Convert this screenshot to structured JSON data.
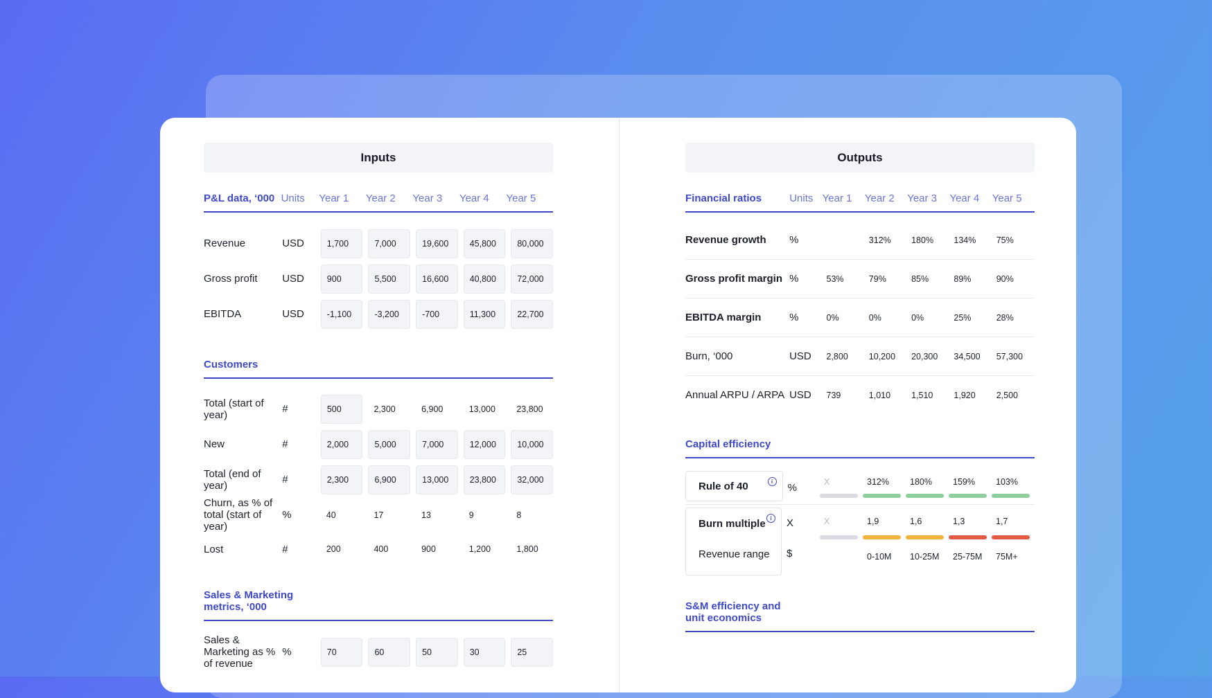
{
  "inputs": {
    "title": "Inputs",
    "pl": {
      "section": "P&L data, ‘000",
      "units_header": "Units",
      "years": [
        "Year 1",
        "Year 2",
        "Year 3",
        "Year 4",
        "Year 5"
      ],
      "rows": [
        {
          "label": "Revenue",
          "unit": "USD",
          "values": [
            "1,700",
            "7,000",
            "19,600",
            "45,800",
            "80,000"
          ]
        },
        {
          "label": "Gross profit",
          "unit": "USD",
          "values": [
            "900",
            "5,500",
            "16,600",
            "40,800",
            "72,000"
          ]
        },
        {
          "label": "EBITDA",
          "unit": "USD",
          "values": [
            "-1,100",
            "-3,200",
            "-700",
            "11,300",
            "22,700"
          ]
        }
      ]
    },
    "customers": {
      "section": "Customers",
      "rows": [
        {
          "label": "Total (start of year)",
          "unit": "#",
          "values": [
            "500",
            "2,300",
            "6,900",
            "13,000",
            "23,800"
          ]
        },
        {
          "label": "New",
          "unit": "#",
          "values": [
            "2,000",
            "5,000",
            "7,000",
            "12,000",
            "10,000"
          ]
        },
        {
          "label": "Total (end of year)",
          "unit": "#",
          "values": [
            "2,300",
            "6,900",
            "13,000",
            "23,800",
            "32,000"
          ]
        },
        {
          "label": "Churn, as % of total (start of year)",
          "unit": "%",
          "values": [
            "40",
            "17",
            "13",
            "9",
            "8"
          ]
        },
        {
          "label": "Lost",
          "unit": "#",
          "values": [
            "200",
            "400",
            "900",
            "1,200",
            "1,800"
          ]
        }
      ]
    },
    "sales": {
      "section": "Sales & Marketing metrics, ‘000",
      "rows": [
        {
          "label": "Sales & Marketing as % of revenue",
          "unit": "%",
          "values": [
            "70",
            "60",
            "50",
            "30",
            "25"
          ]
        }
      ]
    }
  },
  "outputs": {
    "title": "Outputs",
    "ratios": {
      "section": "Financial ratios",
      "units_header": "Units",
      "years": [
        "Year 1",
        "Year 2",
        "Year 3",
        "Year 4",
        "Year 5"
      ],
      "rows": [
        {
          "label": "Revenue growth",
          "unit": "%",
          "values": [
            "",
            "312%",
            "180%",
            "134%",
            "75%"
          ]
        },
        {
          "label": "Gross profit margin",
          "unit": "%",
          "values": [
            "53%",
            "79%",
            "85%",
            "89%",
            "90%"
          ]
        },
        {
          "label": "EBITDA margin",
          "unit": "%",
          "values": [
            "0%",
            "0%",
            "0%",
            "25%",
            "28%"
          ]
        },
        {
          "label": "Burn, ‘000",
          "unit": "USD",
          "values": [
            "2,800",
            "10,200",
            "20,300",
            "34,500",
            "57,300"
          ]
        },
        {
          "label": "Annual ARPU / ARPA",
          "unit": "USD",
          "values": [
            "739",
            "1,010",
            "1,510",
            "1,920",
            "2,500"
          ]
        }
      ]
    },
    "capital": {
      "section": "Capital efficiency",
      "rule40": {
        "label": "Rule of 40",
        "unit": "%",
        "values": [
          "X",
          "312%",
          "180%",
          "159%",
          "103%"
        ],
        "bar_colors": [
          "#d9dbe1",
          "#8fcf9e",
          "#8fcf9e",
          "#8fcf9e",
          "#8fcf9e"
        ]
      },
      "burn": {
        "label": "Burn multiple",
        "unit": "X",
        "values": [
          "X",
          "1,9",
          "1,6",
          "1,3",
          "1,7"
        ],
        "bar_colors": [
          "#d9dbe1",
          "#f2b63d",
          "#f2b63d",
          "#e25a46",
          "#e25a46"
        ]
      },
      "range": {
        "label": "Revenue range",
        "unit": "$",
        "values": [
          "",
          "0-10M",
          "10-25M",
          "25-75M",
          "75M+"
        ]
      },
      "info_glyph": "i"
    },
    "sm": {
      "section": "S&M efficiency and unit economics"
    }
  }
}
